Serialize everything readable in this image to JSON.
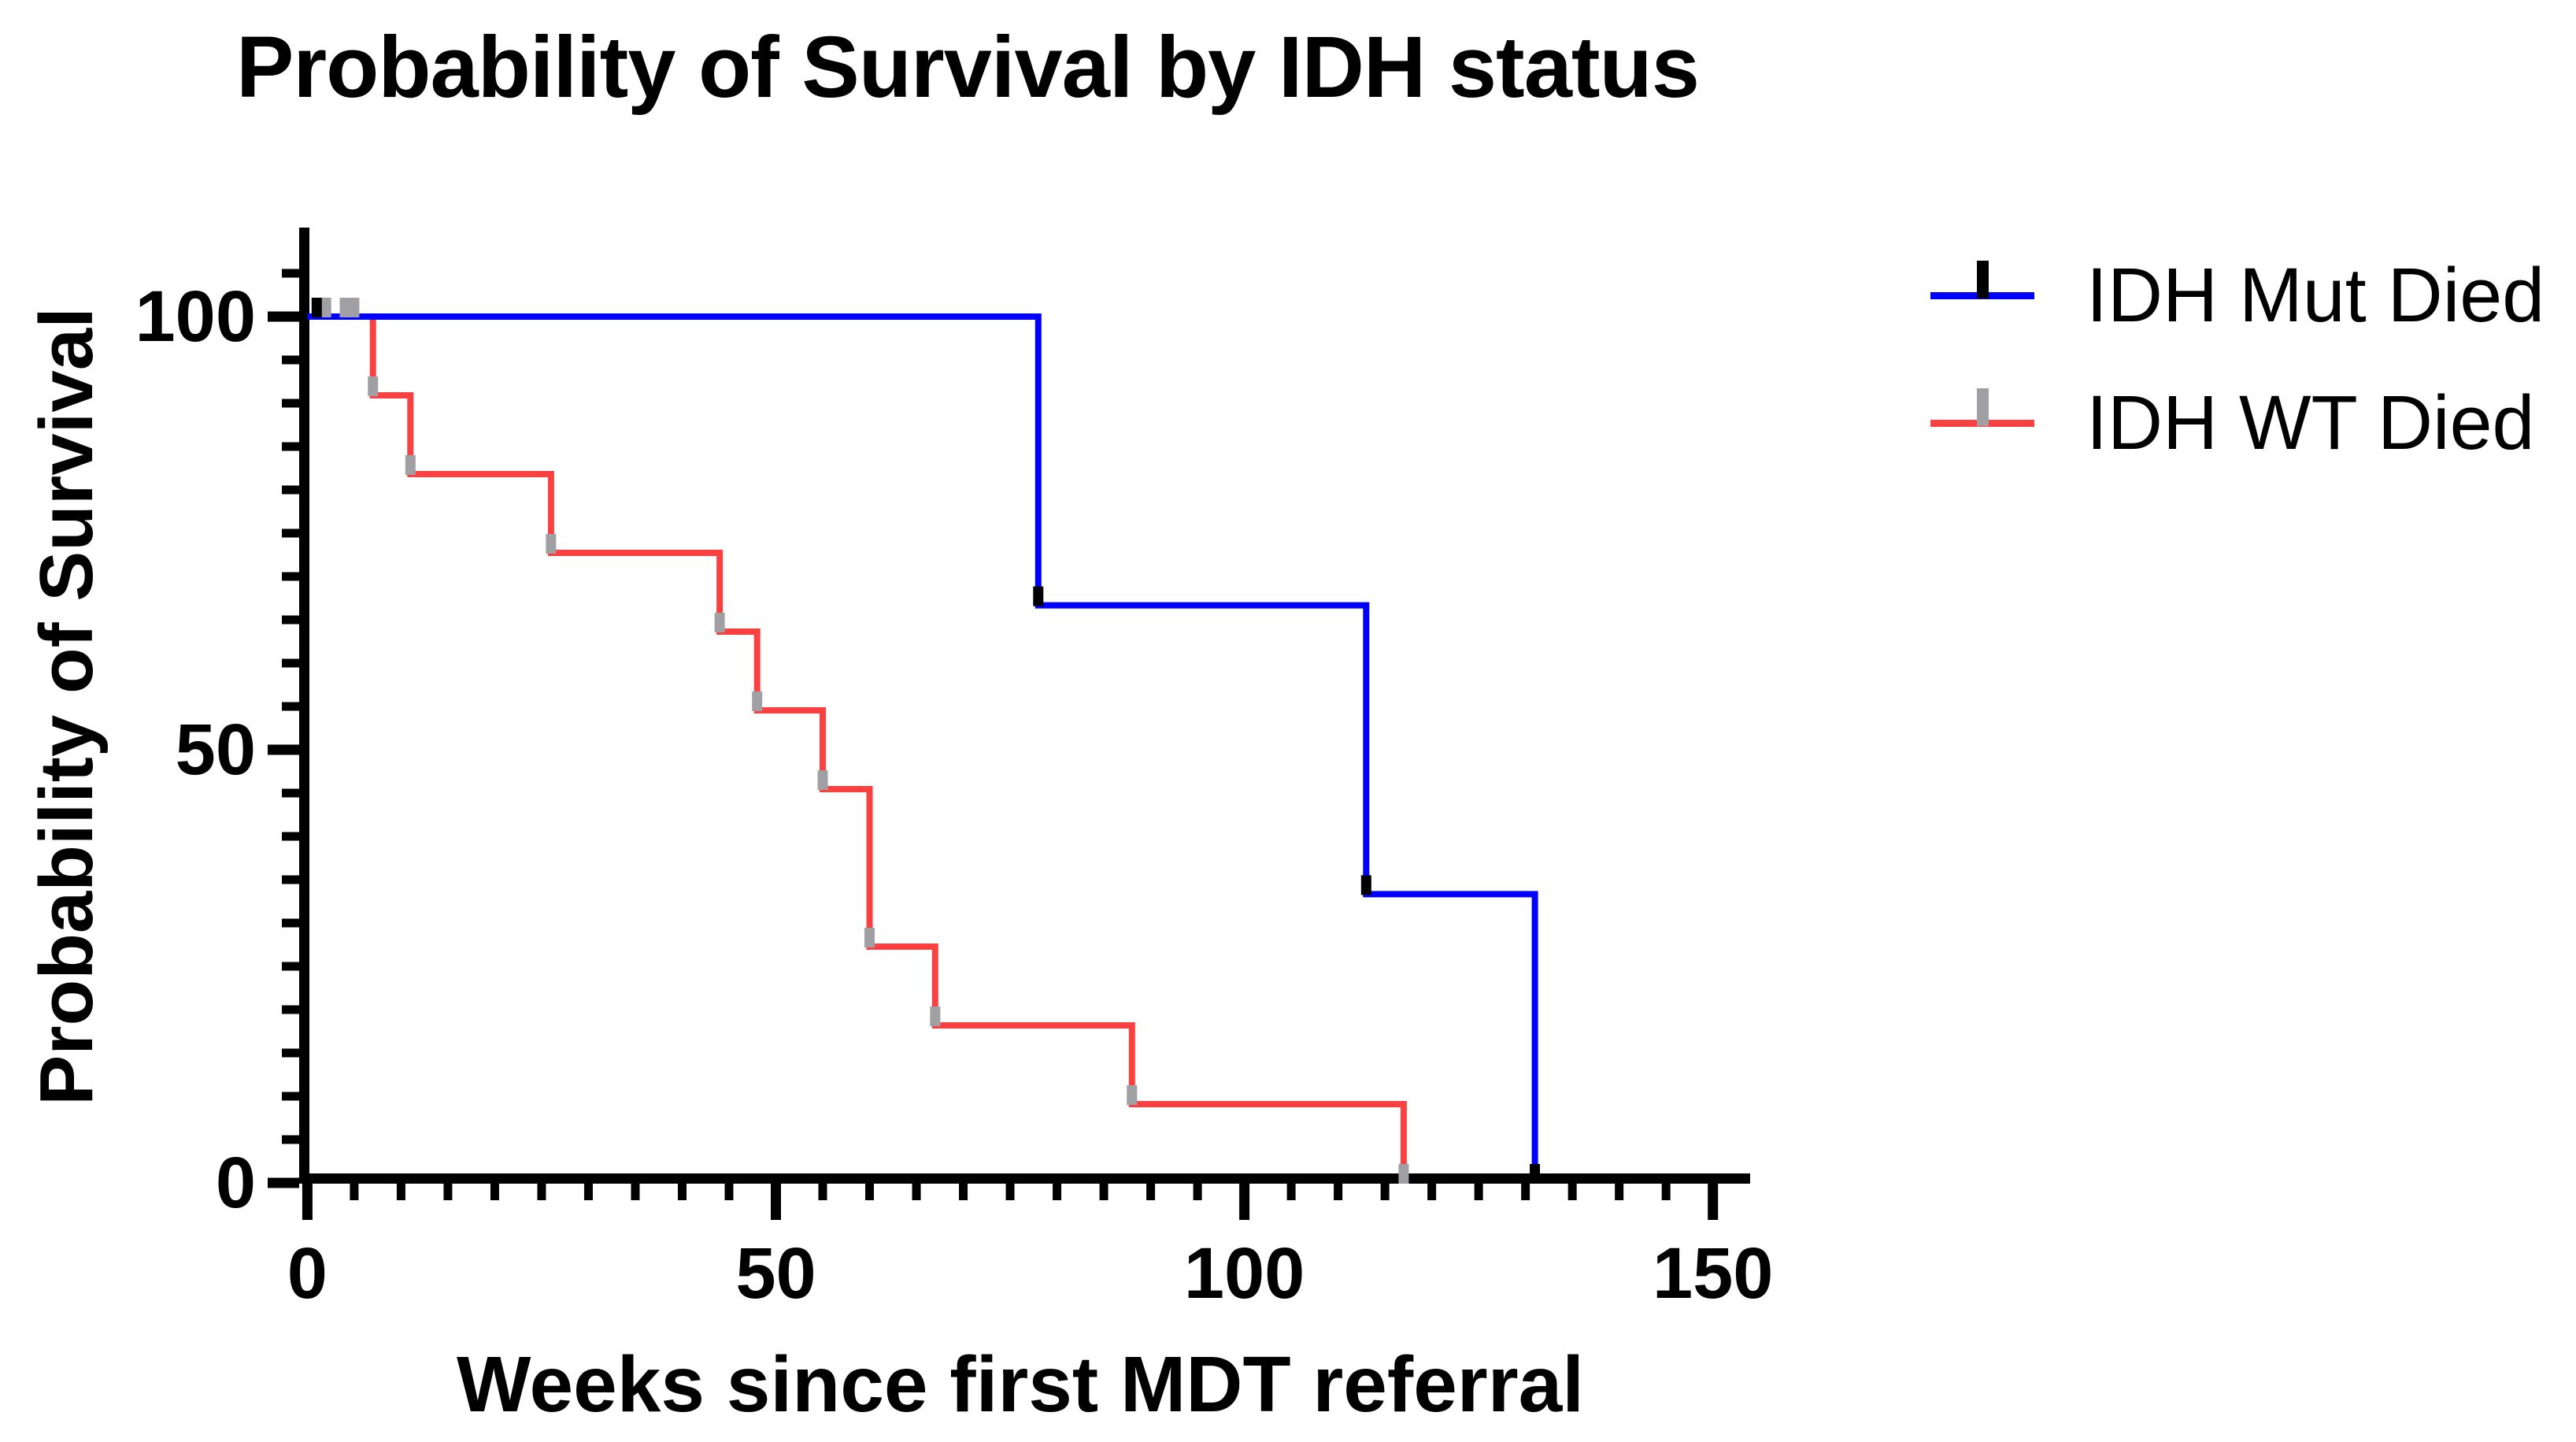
{
  "page": {
    "background": "#ffffff"
  },
  "chart_data": {
    "type": "line",
    "subtype": "kaplan-meier-step",
    "title": "Probability of Survival by IDH status",
    "xlabel": "Weeks since first MDT referral",
    "ylabel": "Probability of Survival",
    "xlim": [
      0,
      150
    ],
    "ylim": [
      0,
      100
    ],
    "x_ticks": [
      0,
      50,
      100,
      150
    ],
    "y_ticks": [
      0,
      50,
      100
    ],
    "x_minor_tick_step": 5,
    "y_minor_tick_step": 5,
    "grid": false,
    "legend_position": "right",
    "axis_color": "#000000",
    "series": [
      {
        "name": "IDH Mut Died",
        "color": "#0000ff",
        "marker_color": "#000000",
        "marker_shape": "vertical-tick",
        "steps": [
          [
            0,
            100
          ],
          [
            78,
            100
          ],
          [
            78,
            66.67
          ],
          [
            113,
            66.67
          ],
          [
            113,
            33.33
          ],
          [
            131,
            33.33
          ],
          [
            131,
            0
          ]
        ],
        "event_markers": [
          [
            78,
            66.67
          ],
          [
            113,
            33.33
          ],
          [
            131,
            0
          ]
        ],
        "censor_markers": [
          [
            1,
            100
          ]
        ]
      },
      {
        "name": "IDH WT Died",
        "color": "#f94141",
        "marker_color": "#a0a0a4",
        "marker_shape": "vertical-tick",
        "steps": [
          [
            0,
            100
          ],
          [
            7,
            100
          ],
          [
            7,
            90.91
          ],
          [
            11,
            90.91
          ],
          [
            11,
            81.82
          ],
          [
            26,
            81.82
          ],
          [
            26,
            72.73
          ],
          [
            44,
            72.73
          ],
          [
            44,
            63.64
          ],
          [
            48,
            63.64
          ],
          [
            48,
            54.55
          ],
          [
            55,
            54.55
          ],
          [
            55,
            45.45
          ],
          [
            60,
            45.45
          ],
          [
            60,
            27.27
          ],
          [
            67,
            27.27
          ],
          [
            67,
            18.18
          ],
          [
            88,
            18.18
          ],
          [
            88,
            9.09
          ],
          [
            117,
            9.09
          ],
          [
            117,
            0
          ]
        ],
        "event_markers": [
          [
            7,
            90.91
          ],
          [
            11,
            81.82
          ],
          [
            26,
            72.73
          ],
          [
            44,
            63.64
          ],
          [
            48,
            54.55
          ],
          [
            55,
            45.45
          ],
          [
            60,
            27.27
          ],
          [
            67,
            18.18
          ],
          [
            88,
            9.09
          ],
          [
            117,
            0
          ]
        ],
        "censor_markers": [
          [
            2,
            100
          ],
          [
            4,
            100
          ],
          [
            5,
            100
          ]
        ]
      }
    ]
  },
  "legend": {
    "items": [
      {
        "label": "IDH Mut Died"
      },
      {
        "label": "IDH WT Died"
      }
    ]
  }
}
